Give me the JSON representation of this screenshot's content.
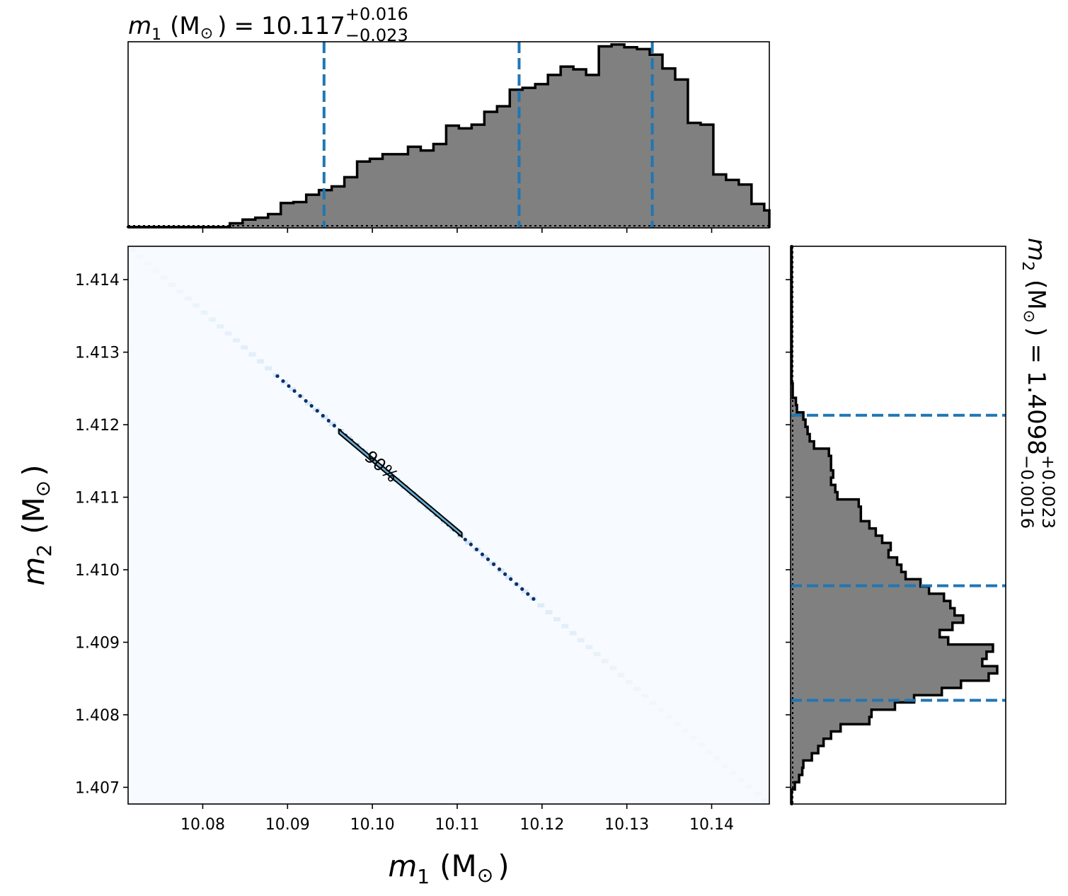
{
  "chart_data": [
    {
      "panel": "top-marginal",
      "type": "histogram",
      "title_var": "m",
      "title_sub": "1",
      "title_unit": "(M",
      "title_sun": "⊙",
      "title_close": ")",
      "title_eq": "=",
      "title_value": "10.117",
      "title_plus": "+0.016",
      "title_minus": "−0.023",
      "xlim": [
        10.0712,
        10.1468
      ],
      "x_ticks": [
        10.08,
        10.09,
        10.1,
        10.11,
        10.12,
        10.13,
        10.14
      ],
      "quantile_lines": [
        10.0943,
        10.1173,
        10.133
      ],
      "bin_edges_start": 10.0712,
      "bin_width": 0.0015,
      "counts": [
        0.5,
        0.5,
        0.5,
        0.5,
        0.5,
        0.5,
        0.5,
        0.5,
        2.5,
        4.5,
        5.5,
        7.5,
        13.5,
        14,
        18,
        20.5,
        22.5,
        27.5,
        36,
        37.5,
        40,
        40,
        44,
        42,
        45.5,
        55.5,
        54,
        56,
        63,
        66,
        75,
        76,
        78,
        83,
        87.5,
        86,
        83,
        98.5,
        99.5,
        98,
        97,
        94,
        86.5,
        80.5,
        57,
        56,
        29,
        26,
        23.5,
        13,
        9.5,
        4.5,
        2,
        1,
        0.5,
        0.5,
        0.5,
        0.5,
        0.5,
        0.5,
        0.5
      ],
      "ymax": 101
    },
    {
      "panel": "joint",
      "type": "heatmap",
      "xlabel_var": "m",
      "xlabel_sub": "1",
      "xlabel_unit": "(M",
      "xlabel_sun": "⊙",
      "xlabel_close": ")",
      "ylabel_var": "m",
      "ylabel_sub": "2",
      "ylabel_unit": "(M",
      "ylabel_sun": "⊙",
      "ylabel_close": ")",
      "xlim": [
        10.0712,
        10.1468
      ],
      "ylim": [
        1.40677,
        1.41446
      ],
      "x_ticks": [
        10.08,
        10.09,
        10.1,
        10.11,
        10.12,
        10.13,
        10.14
      ],
      "y_ticks": [
        1.407,
        1.408,
        1.409,
        1.41,
        1.411,
        1.412,
        1.413,
        1.414
      ],
      "relation_start": [
        10.0712,
        1.41446
      ],
      "relation_end": [
        10.1468,
        1.40677
      ],
      "contour_label": "90%",
      "contour_range": [
        10.0963,
        10.1103
      ],
      "dotted_range": [
        10.0888,
        10.119
      ],
      "colormap": "Blues"
    },
    {
      "panel": "right-marginal",
      "type": "histogram",
      "title_var": "m",
      "title_sub": "2",
      "title_unit": "(M",
      "title_sun": "⊙",
      "title_close": ")",
      "title_eq": "=",
      "title_value": "1.4098",
      "title_plus": "+0.0023",
      "title_minus": "−0.0016",
      "ylim": [
        1.40677,
        1.41446
      ],
      "y_ticks": [
        1.407,
        1.408,
        1.409,
        1.41,
        1.411,
        1.412,
        1.413,
        1.414
      ],
      "quantile_lines": [
        1.4082,
        1.40978,
        1.41213
      ],
      "bin_edges_start": 1.40677,
      "bin_width": 0.0001,
      "counts": [
        0.5,
        0.5,
        2,
        4,
        5.5,
        6,
        10,
        13,
        15.5,
        19,
        23.5,
        37,
        38,
        49,
        58,
        71,
        80,
        93,
        97,
        90,
        92,
        95,
        74,
        70,
        76,
        81,
        77,
        75,
        72,
        65,
        61,
        54,
        52,
        50,
        46,
        47,
        43,
        40,
        37,
        33,
        33,
        32,
        22,
        21,
        19,
        20,
        19,
        19,
        18,
        11,
        9,
        8,
        7,
        6,
        3,
        2.5,
        1,
        1,
        0.5,
        0.5,
        0.5,
        0.5,
        0.5,
        0.5,
        0.5,
        0.5,
        0.5,
        0.5,
        0.5,
        0.5,
        0.5,
        0.5,
        0.5,
        0.5,
        0.5,
        0.5,
        0.5
      ],
      "xmax": 101
    }
  ],
  "colors": {
    "hist_fill": "#808080",
    "hist_edge": "#000000",
    "quantile": "#1f77b4",
    "heat_bg": "#f7fbff",
    "heat_light": "#c6dbef",
    "heat_mid": "#6baed6",
    "heat_dark": "#08306b"
  }
}
